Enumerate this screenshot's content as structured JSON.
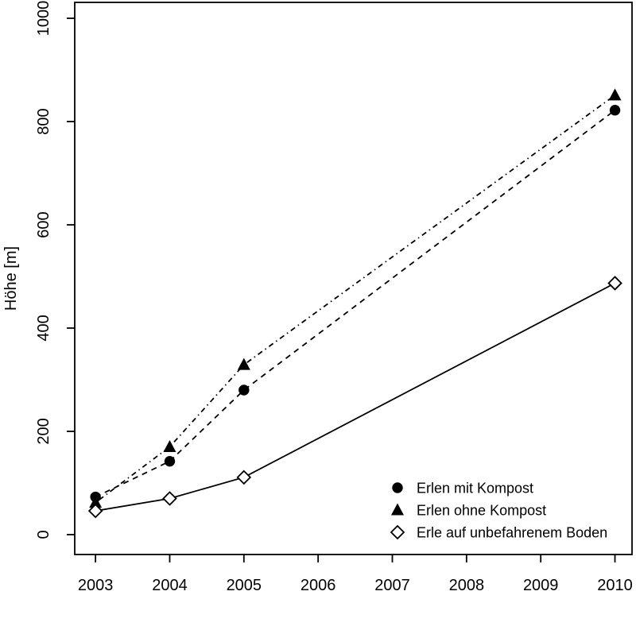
{
  "chart_data": {
    "type": "line",
    "title": "",
    "xlabel": "",
    "ylabel": "Höhe [m]",
    "xlim": [
      2002.72,
      2010.23
    ],
    "ylim": [
      -38.5,
      1030.8
    ],
    "xticks": [
      2003,
      2004,
      2005,
      2006,
      2007,
      2008,
      2009,
      2010
    ],
    "yticks": [
      0,
      200,
      400,
      600,
      800,
      1000
    ],
    "grid": false,
    "legend_position": "bottom-right",
    "background_color": "#ffffff",
    "axis_color": "#000000",
    "x": [
      2003,
      2004,
      2005,
      2010
    ],
    "series": [
      {
        "name": "Erlen mit Kompost",
        "marker": "filled-circle",
        "line": "dashed",
        "color": "#000000",
        "values": [
          73,
          142,
          280,
          822
        ]
      },
      {
        "name": "Erlen ohne Kompost",
        "marker": "filled-triangle",
        "line": "dotdash",
        "color": "#000000",
        "values": [
          62,
          170,
          329,
          851
        ]
      },
      {
        "name": "Erle auf unbefahrenem Boden",
        "marker": "open-diamond",
        "line": "solid",
        "color": "#000000",
        "values": [
          46,
          70,
          111,
          487
        ]
      }
    ]
  }
}
